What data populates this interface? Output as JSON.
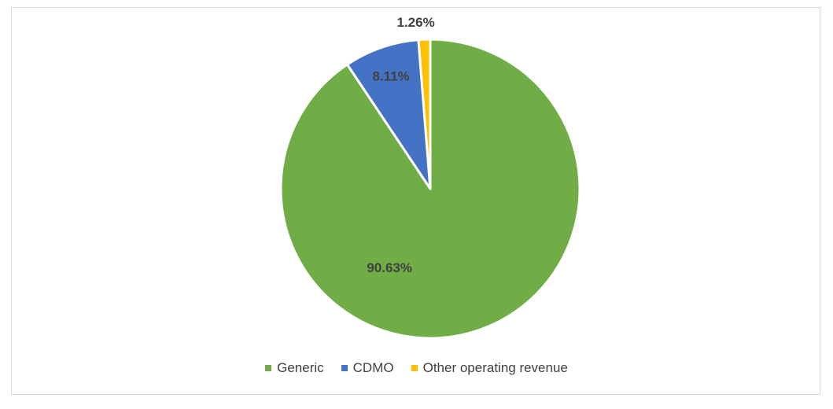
{
  "chart_data": {
    "type": "pie",
    "title": "",
    "legend_position": "bottom",
    "slices": [
      {
        "label": "Generic",
        "value": 90.63,
        "data_label": "90.63%",
        "color": "#70ad47"
      },
      {
        "label": "CDMO",
        "value": 8.11,
        "data_label": "8.11%",
        "color": "#4472c4"
      },
      {
        "label": "Other operating revenue",
        "value": 1.26,
        "data_label": "1.26%",
        "color": "#ffc000"
      }
    ]
  }
}
